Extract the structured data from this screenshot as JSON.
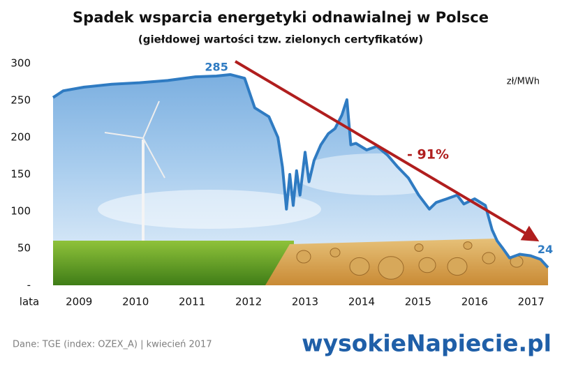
{
  "chart_data": {
    "type": "line",
    "title": "Spadek wsparcia energetyki odnawialnej w Polsce",
    "subtitle": "(giełdowej wartości tzw. zielonych certyfikatów)",
    "unit_label": "zł/MWh",
    "x_label": "lata",
    "annotation": "- 91%",
    "source": "Dane: TGE (index: OZEX_A)   |   kwiecień 2017",
    "logo": "wysokieNapiecie.pl",
    "color": "#2f7bc2",
    "x": [
      2008.54,
      2008.72,
      2009.09,
      2009.58,
      2010.07,
      2010.57,
      2011.06,
      2011.43,
      2011.68,
      2011.93,
      2012.11,
      2012.36,
      2012.52,
      2012.6,
      2012.67,
      2012.73,
      2012.79,
      2012.85,
      2012.91,
      2013.0,
      2013.07,
      2013.16,
      2013.28,
      2013.41,
      2013.53,
      2013.65,
      2013.74,
      2013.81,
      2013.9,
      2014.09,
      2014.27,
      2014.46,
      2014.64,
      2014.83,
      2015.01,
      2015.2,
      2015.32,
      2015.51,
      2015.69,
      2015.81,
      2016.0,
      2016.19,
      2016.31,
      2016.4,
      2016.49,
      2016.62,
      2016.8,
      2016.99,
      2017.17,
      2017.3
    ],
    "values": [
      254,
      263,
      268,
      272,
      274,
      277,
      282,
      283,
      285,
      280,
      240,
      228,
      200,
      160,
      103,
      150,
      108,
      155,
      122,
      180,
      140,
      169,
      190,
      205,
      212,
      230,
      251,
      190,
      192,
      183,
      188,
      176,
      160,
      145,
      122,
      103,
      112,
      117,
      122,
      110,
      117,
      108,
      75,
      60,
      51,
      37,
      42,
      40,
      35,
      24
    ],
    "xlim": [
      2008.54,
      2017.3
    ],
    "xticks": [
      2009,
      2010,
      2011,
      2012,
      2013,
      2014,
      2015,
      2016,
      2017
    ],
    "ylim": [
      0,
      300
    ],
    "yticks": [
      {
        "value": 0,
        "label": "-"
      },
      50,
      100,
      150,
      200,
      250,
      300
    ],
    "grid": false
  }
}
